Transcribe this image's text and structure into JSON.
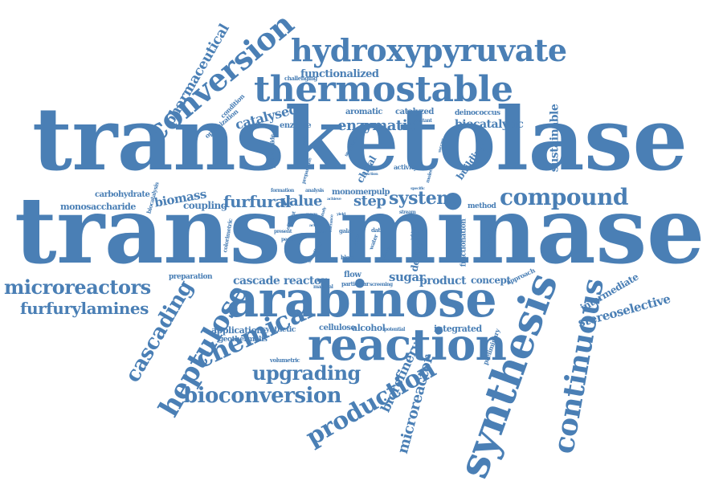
{
  "color": "#4a7fb5",
  "words": {
    "transketolase": "transketolase",
    "transaminase": "transaminase",
    "arabinose": "arabinose",
    "reaction": "reaction",
    "synthesis": "synthesis",
    "thermostable": "thermostable",
    "hydroxypyruvate": "hydroxypyruvate",
    "conversion": "conversion",
    "continuous": "continuous",
    "compound": "compound",
    "microreactors": "microreactors",
    "chemical": "chemical",
    "heptulose": "heptulose",
    "cascading": "cascading",
    "production": "production",
    "bioconversion": "bioconversion",
    "upgrading": "upgrading",
    "furfurylamines": "furfurylamines",
    "enzymatic": "enzymatic",
    "furfural": "furfural",
    "value": "value",
    "system": "system",
    "step": "step",
    "microreactor": "microreactor",
    "biorefinery": "biorefinery",
    "pharmaceutical": "pharmaceutical",
    "catalysed": "catalysed",
    "functionalized": "functionalized",
    "biocatalytic": "biocatalytic",
    "sustainable": "sustainable",
    "stereoselective": "stereoselective",
    "intermediate": "intermediate",
    "biomass": "biomass",
    "coupling": "coupling",
    "monosaccharide": "monosaccharide",
    "carbohydrate": "carbohydrate",
    "cascade": "cascade",
    "reactor": "reactor",
    "sugar": "sugar",
    "product": "product",
    "concept": "concept",
    "integrated": "integrated",
    "cellulose": "cellulose",
    "alcohol": "alcohol",
    "application": "application",
    "synthetic": "synthetic",
    "geothermalis": "geothermalis",
    "volumetric": "volumetric",
    "preparation": "preparation",
    "aromatic": "aromatic",
    "catalyzed": "catalyzed",
    "deinococcus": "deinococcus",
    "enzyme": "enzyme",
    "chiral": "chiral",
    "building": "building",
    "activity": "activity",
    "monomer": "monomer",
    "pulp": "pulp",
    "flow": "flow",
    "method": "method",
    "derivative": "derivative",
    "fractionation": "fractionation",
    "amination": "amination",
    "approach": "approach",
    "preliminary": "preliminary",
    "challenging": "challenging",
    "optimization": "optimization",
    "condition": "condition",
    "phthalimide": "phthalimide",
    "biocatalysis": "biocatalysis",
    "formation": "formation",
    "analysis": "analysis",
    "colorimetric": "colorimetric",
    "present": "present",
    "pectin": "pectin",
    "galac": "galac",
    "data": "data",
    "block": "block",
    "particular": "particular",
    "screening": "screening",
    "material": "material",
    "potential": "potential",
    "added": "added",
    "water": "water",
    "route": "route",
    "stream": "stream",
    "mutant": "mutant",
    "sequence": "sequence",
    "preparative": "preparative",
    "molecule": "molecule",
    "efficient": "efficient",
    "selectivity": "selectivity",
    "higher": "higher",
    "yield": "yield",
    "range": "range",
    "active": "active",
    "global": "global",
    "scale": "scale",
    "tolerance": "tolerance",
    "fraction": "fraction",
    "specific": "specific",
    "pure": "pure",
    "kinetic": "kinetic",
    "study": "study",
    "success": "success",
    "achieve": "achieve"
  }
}
